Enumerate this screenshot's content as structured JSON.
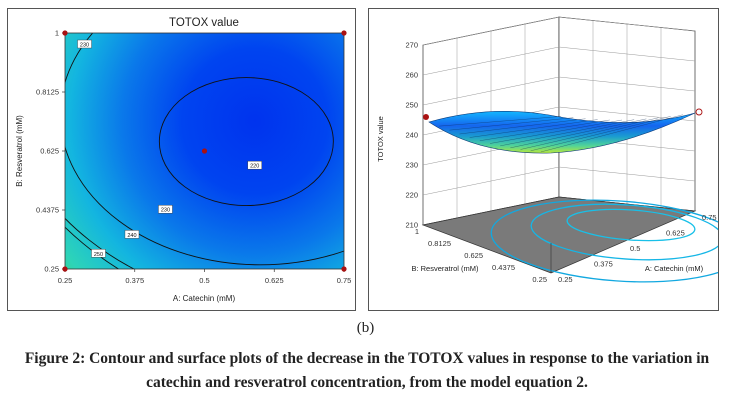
{
  "panel_label": "(b)",
  "caption": "Figure 2: Contour and surface plots of the decrease in the TOTOX values in response to the variation in catechin and resveratrol concentration, from the model equation 2.",
  "colors": {
    "low": "#0033ee",
    "high": "#ddee22",
    "mid": "#22ccdd",
    "design_point": "#aa1111"
  },
  "chart_data": [
    {
      "type": "heatmap",
      "subtype": "contour",
      "title": "TOTOX value",
      "xlabel": "A: Catechin (mM)",
      "ylabel": "B: Resveratrol (mM)",
      "xlim": [
        0.25,
        0.75
      ],
      "ylim": [
        0.25,
        1
      ],
      "xticks": [
        "0.25",
        "0.375",
        "0.5",
        "0.625",
        "0.75"
      ],
      "yticks": [
        "0.25",
        "0.4375",
        "0.625",
        "0.8125",
        "1"
      ],
      "contour_labels": [
        "220",
        "230",
        "240",
        "250",
        "230"
      ],
      "design_points": [
        {
          "x": 0.25,
          "y": 1
        },
        {
          "x": 0.75,
          "y": 1
        },
        {
          "x": 0.25,
          "y": 0.25
        },
        {
          "x": 0.75,
          "y": 0.25
        },
        {
          "x": 0.5,
          "y": 0.625
        }
      ]
    },
    {
      "type": "surface",
      "zlabel": "TOTOX value",
      "xlabel": "A: Catechin (mM)",
      "ylabel": "B: Resveratrol (mM)",
      "zticks": [
        "210",
        "220",
        "230",
        "240",
        "250",
        "260",
        "270"
      ],
      "zlim": [
        210,
        270
      ],
      "xticks": [
        "0.25",
        "0.375",
        "0.5",
        "0.625",
        "0.75"
      ],
      "yticks": [
        "0.25",
        "0.4375",
        "0.625",
        "0.8125",
        "1"
      ],
      "grid": true
    }
  ]
}
